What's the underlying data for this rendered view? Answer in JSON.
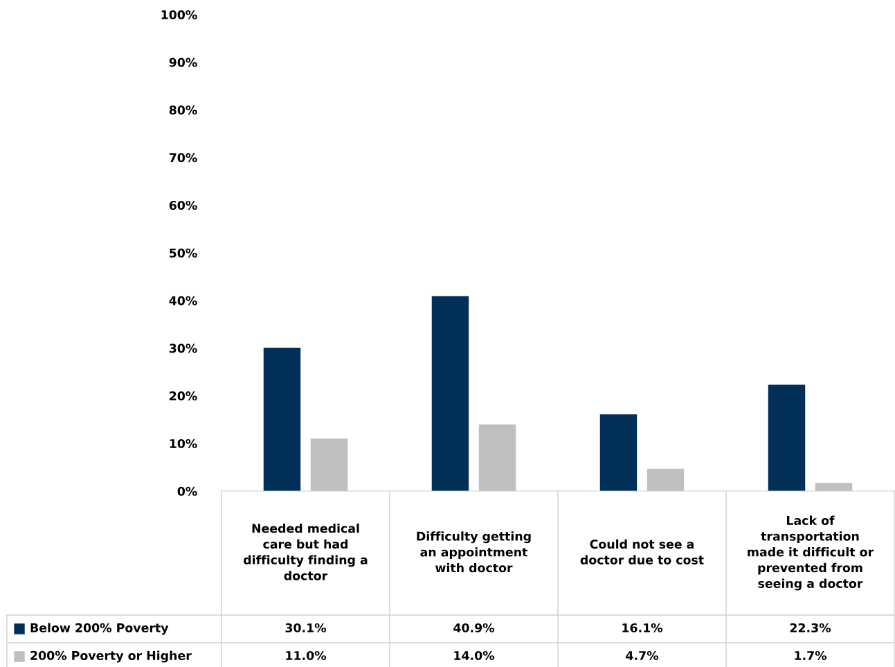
{
  "chart_data": {
    "type": "bar",
    "categories": [
      "Needed medical\ncare but had\ndifficulty finding a\ndoctor",
      "Difficulty getting\nan appointment\nwith doctor",
      "Could not see a\ndoctor due to cost",
      "Lack of\ntransportation\nmade it difficult or\nprevented from\nseeing a doctor"
    ],
    "series": [
      {
        "name": "Below 200% Poverty",
        "color": "#003057",
        "values": [
          30.1,
          40.9,
          16.1,
          22.3
        ],
        "value_labels": [
          "30.1%",
          "40.9%",
          "16.1%",
          "22.3%"
        ]
      },
      {
        "name": "200% Poverty or Higher",
        "color": "#bfbfbf",
        "values": [
          11.0,
          14.0,
          4.7,
          1.7
        ],
        "value_labels": [
          "11.0%",
          "14.0%",
          "4.7%",
          "1.7%"
        ]
      }
    ],
    "ylim": [
      0,
      100
    ],
    "yticks": [
      {
        "value": 0,
        "label": "0%"
      },
      {
        "value": 10,
        "label": "10%"
      },
      {
        "value": 20,
        "label": "20%"
      },
      {
        "value": 30,
        "label": "30%"
      },
      {
        "value": 40,
        "label": "40%"
      },
      {
        "value": 50,
        "label": "50%"
      },
      {
        "value": 60,
        "label": "60%"
      },
      {
        "value": 70,
        "label": "70%"
      },
      {
        "value": 80,
        "label": "80%"
      },
      {
        "value": 90,
        "label": "90%"
      },
      {
        "value": 100,
        "label": "100%"
      }
    ],
    "grid": false,
    "legend": "bottom"
  }
}
